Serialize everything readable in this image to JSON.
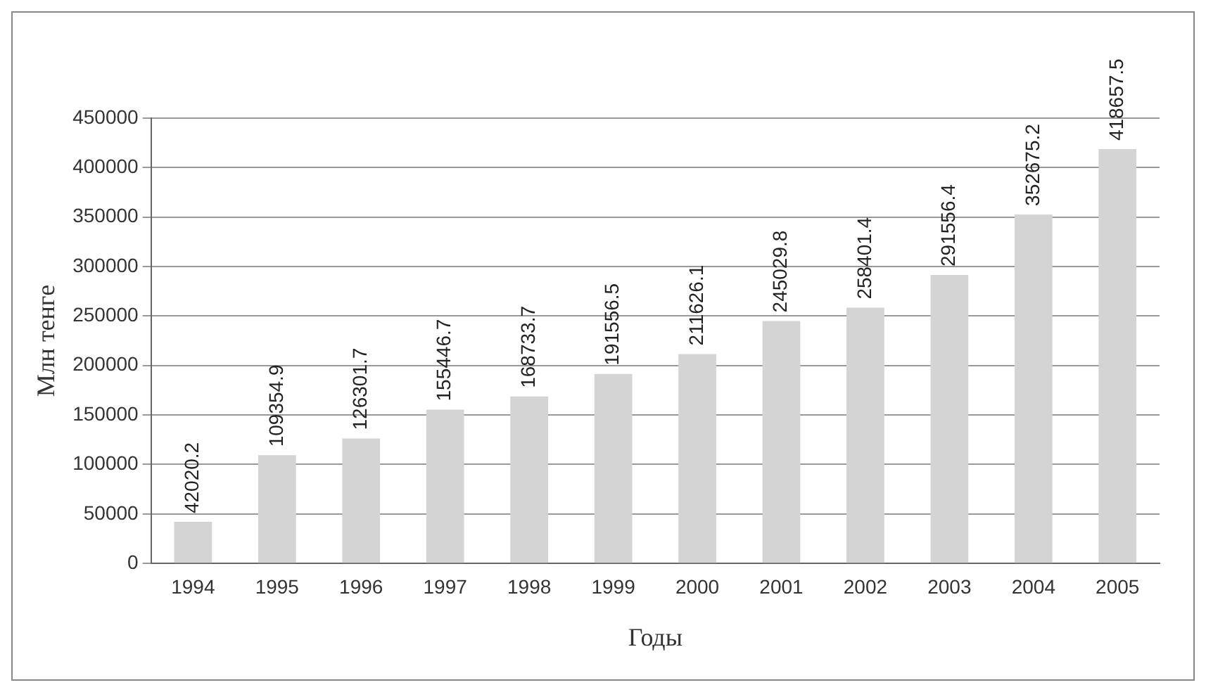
{
  "chart_data": {
    "type": "bar",
    "xlabel": "Годы",
    "ylabel": "Млн тенге",
    "categories": [
      "1994",
      "1995",
      "1996",
      "1997",
      "1998",
      "1999",
      "2000",
      "2001",
      "2002",
      "2003",
      "2004",
      "2005"
    ],
    "values": [
      42020.2,
      109354.9,
      126301.7,
      155446.7,
      168733.7,
      191556.5,
      211626.1,
      245029.8,
      258401.4,
      291556.4,
      352675.2,
      418657.5
    ],
    "color": "#d4d4d4",
    "ylim": [
      0,
      450000
    ],
    "yticks": [
      0,
      50000,
      100000,
      150000,
      200000,
      250000,
      300000,
      350000,
      400000,
      450000
    ],
    "grid": "y",
    "data_labels": true,
    "legend": false
  }
}
